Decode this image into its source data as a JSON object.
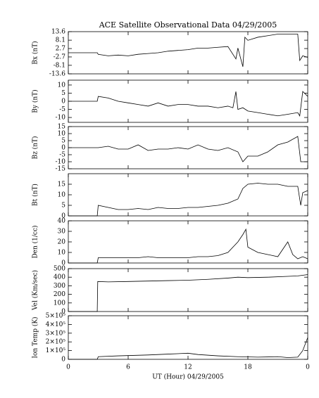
{
  "chart_data": [
    {
      "type": "line",
      "title": "ACE Satellite Observational Data   04/29/2005",
      "y_label": "Bx (nT)",
      "color": "#000000",
      "ylim": [
        -13.6,
        13.6
      ],
      "yticks": [
        -13.6,
        -8.1,
        -2.7,
        2.7,
        8.1,
        13.6
      ],
      "x": [
        0,
        2.9,
        3,
        4,
        5,
        6,
        7,
        8,
        9,
        10,
        11,
        12,
        13,
        14,
        15,
        16,
        16.8,
        17,
        17.5,
        17.7,
        18,
        19,
        20,
        21,
        22,
        23,
        23.2,
        23.5,
        24
      ],
      "values": [
        0,
        0,
        -1,
        -2,
        -1.5,
        -2,
        -1,
        -0.5,
        0,
        1,
        1.5,
        2,
        3,
        3,
        3.5,
        4,
        -4,
        3,
        -9,
        10,
        8,
        10,
        11,
        12,
        12,
        12,
        -5,
        -2,
        -3
      ]
    },
    {
      "type": "line",
      "y_label": "By (nT)",
      "color": "#000000",
      "ylim": [
        -13,
        13
      ],
      "yticks": [
        -10,
        -5,
        0,
        5,
        10
      ],
      "x": [
        0,
        2.9,
        3,
        4,
        5,
        6,
        7,
        8,
        9,
        10,
        11,
        12,
        13,
        14,
        15,
        16,
        16.5,
        16.8,
        17,
        17.5,
        18,
        19,
        20,
        21,
        22,
        23,
        23.2,
        23.5,
        24
      ],
      "values": [
        0,
        0,
        3,
        2,
        0,
        -1,
        -2,
        -3,
        -1,
        -3,
        -2,
        -2,
        -3,
        -3,
        -4,
        -3,
        -4,
        6,
        -5,
        -4,
        -6,
        -7,
        -8,
        -9,
        -8,
        -7,
        -9,
        6,
        3
      ]
    },
    {
      "type": "line",
      "y_label": "Bz (nT)",
      "color": "#000000",
      "ylim": [
        -15,
        15
      ],
      "yticks": [
        -15,
        -10,
        -5,
        0,
        5,
        10,
        15
      ],
      "x": [
        0,
        2.9,
        3,
        4,
        5,
        6,
        7,
        8,
        9,
        10,
        11,
        12,
        13,
        14,
        15,
        16,
        17,
        17.5,
        18,
        19,
        20,
        21,
        22,
        23,
        23.3,
        24
      ],
      "values": [
        0,
        0,
        0,
        1,
        -1,
        -1,
        2,
        -2,
        -1,
        -1,
        0,
        -1,
        2,
        -1,
        -2,
        0,
        -3,
        -10,
        -6,
        -6,
        -3,
        2,
        4,
        8,
        -10,
        -10
      ]
    },
    {
      "type": "line",
      "y_label": "Bt (nT)",
      "color": "#000000",
      "ylim": [
        0,
        20
      ],
      "yticks": [
        0,
        5,
        10,
        15
      ],
      "x": [
        0,
        2.9,
        3,
        4,
        5,
        6,
        7,
        8,
        9,
        10,
        11,
        12,
        13,
        14,
        15,
        16,
        17,
        17.5,
        18,
        19,
        20,
        21,
        22,
        23,
        23.3,
        23.5,
        24
      ],
      "values": [
        0,
        0,
        5,
        4,
        3,
        3,
        3.5,
        3,
        4,
        3.5,
        3.5,
        4,
        4,
        4.5,
        5,
        6,
        8,
        13,
        15,
        15.5,
        15,
        15,
        14,
        14,
        5,
        11,
        12
      ]
    },
    {
      "type": "line",
      "y_label": "Den (1/cc)",
      "color": "#000000",
      "ylim": [
        0,
        40
      ],
      "yticks": [
        0,
        10,
        20,
        30,
        40
      ],
      "x": [
        0,
        2.9,
        3,
        4,
        5,
        6,
        7,
        8,
        9,
        10,
        11,
        12,
        13,
        14,
        15,
        16,
        17,
        17.5,
        17.8,
        18,
        19,
        20,
        21,
        22,
        22.5,
        23,
        23.5,
        24
      ],
      "values": [
        0,
        0,
        5,
        5,
        5,
        5,
        5,
        6,
        5,
        5,
        5,
        5,
        6,
        6,
        7,
        10,
        20,
        27,
        32,
        15,
        10,
        8,
        6,
        20,
        8,
        4,
        6,
        4
      ]
    },
    {
      "type": "line",
      "y_label": "Vel (Km/sec)",
      "color": "#000000",
      "ylim": [
        0,
        500
      ],
      "yticks": [
        0,
        100,
        200,
        300,
        400,
        500
      ],
      "x": [
        0,
        2.9,
        2.95,
        4,
        6,
        8,
        10,
        12,
        14,
        16,
        17,
        18,
        20,
        22,
        23,
        24
      ],
      "values": [
        0,
        0,
        350,
        345,
        350,
        355,
        360,
        365,
        375,
        390,
        400,
        395,
        400,
        410,
        415,
        430
      ]
    },
    {
      "type": "line",
      "y_label": "Ion Temp (K)",
      "color": "#000000",
      "ylim": [
        0,
        500000
      ],
      "yticks": [
        0,
        {
          "value": 100000,
          "label": "1×10⁵"
        },
        {
          "value": 200000,
          "label": "2×10⁵"
        },
        {
          "value": 300000,
          "label": "3×10⁵"
        },
        {
          "value": 400000,
          "label": "4×10⁵"
        },
        {
          "value": 500000,
          "label": "5×10⁵"
        }
      ],
      "x": [
        0,
        2.9,
        3,
        5,
        8,
        10,
        12,
        13,
        15,
        17,
        19,
        21,
        22,
        23,
        23.5,
        24
      ],
      "values": [
        0,
        0,
        30000,
        40000,
        50000,
        60000,
        70000,
        55000,
        40000,
        30000,
        25000,
        30000,
        20000,
        25000,
        100000,
        250000
      ],
      "x_label": "UT (Hour)   04/29/2005",
      "xlim": [
        0,
        24
      ],
      "xticks": [
        0,
        6,
        12,
        18,
        {
          "value": 24,
          "label": "0"
        }
      ]
    }
  ]
}
